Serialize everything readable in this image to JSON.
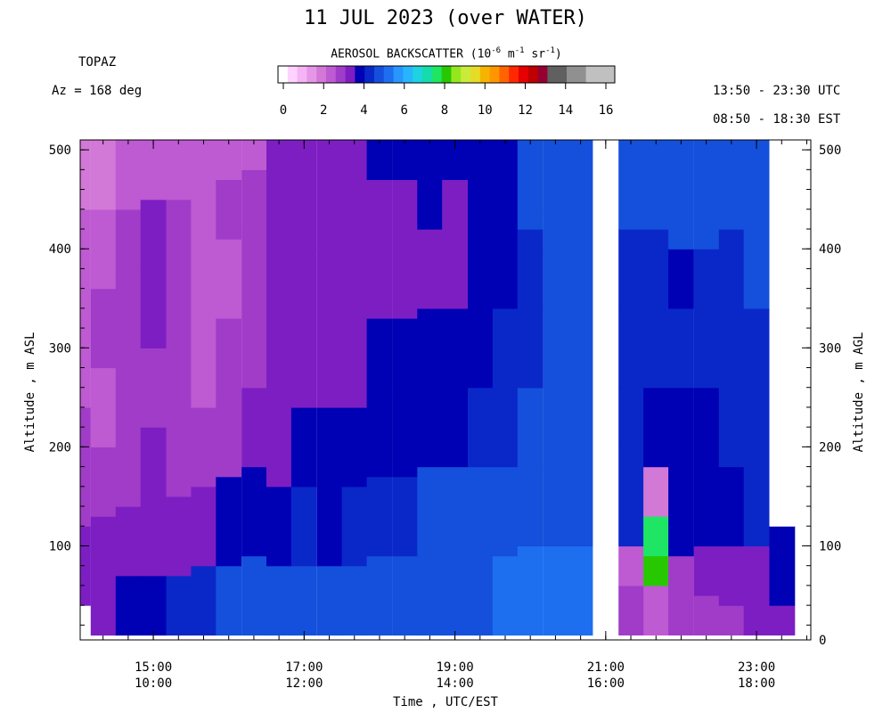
{
  "title": "11 JUL 2023 (over WATER)",
  "instrument": "TOPAZ",
  "azimuth": "Az = 168 deg",
  "time_range_utc": "13:50 - 23:30 UTC",
  "time_range_est": "08:50 - 18:30 EST",
  "colorbar": {
    "title_prefix": "AEROSOL BACKSCATTER (10",
    "exp1": "-6",
    "title_mid1": " m",
    "exp2": "-1",
    "title_mid2": " sr",
    "exp3": "-1",
    "title_suffix": ")",
    "tick_labels": [
      "0",
      "2",
      "4",
      "6",
      "8",
      "10",
      "12",
      "14",
      "16"
    ],
    "colors": [
      "#ffffff",
      "#ffd2ff",
      "#f5b4f5",
      "#e696e6",
      "#d278d7",
      "#be5ad2",
      "#a03cc8",
      "#7d1ec3",
      "#0000b4",
      "#0a28c8",
      "#1450dc",
      "#1e6ef0",
      "#2896ff",
      "#28b4ff",
      "#1ed2e1",
      "#14dcaa",
      "#1ee664",
      "#28c800",
      "#96e61e",
      "#c8eb3c",
      "#e6dc28",
      "#f5b400",
      "#ff9600",
      "#ff6400",
      "#ff2800",
      "#e60000",
      "#be0000",
      "#960030",
      "#606060",
      "#606060",
      "#909090",
      "#909090",
      "#c0c0c0",
      "#c0c0c0",
      "#c0c0c0"
    ]
  },
  "chart_data": {
    "type": "heatmap",
    "title": "11 JUL 2023 (over WATER)",
    "xlabel": "Time , UTC/EST",
    "ylabel_left": "Altitude , m ASL",
    "ylabel_right": "Altitude , m AGL",
    "x_ticks_utc": [
      "15:00",
      "17:00",
      "19:00",
      "21:00",
      "23:00"
    ],
    "x_ticks_est": [
      "10:00",
      "12:00",
      "14:00",
      "16:00",
      "18:00"
    ],
    "x_tick_hours_utc": [
      15,
      17,
      19,
      21,
      23
    ],
    "y_ticks_left": [
      "100",
      "200",
      "300",
      "400",
      "500"
    ],
    "y_tick_values_left": [
      100,
      200,
      300,
      400,
      500
    ],
    "y_ticks_right": [
      "0",
      "100",
      "200",
      "300",
      "400",
      "500"
    ],
    "y_tick_values_right": [
      0,
      100,
      200,
      300,
      400,
      500
    ],
    "x_range_utc_hours": [
      14.03,
      23.72
    ],
    "y_range_m": [
      5,
      510
    ],
    "z_units": "10^-6 m^-1 sr^-1",
    "z_range": [
      0,
      16
    ],
    "column_width_hours": 0.333,
    "column_start_hours_utc": [
      13.83,
      14.17,
      14.5,
      14.83,
      15.17,
      15.5,
      15.83,
      16.17,
      16.5,
      16.83,
      17.17,
      17.5,
      17.83,
      18.17,
      18.5,
      18.83,
      19.17,
      19.5,
      19.83,
      20.17,
      20.5,
      20.83,
      21.17,
      21.5,
      21.83,
      22.17,
      22.5,
      22.83,
      23.17
    ],
    "segments_note": "each column: [altitude_bottom_m, altitude_top_m, backscatter_value]",
    "columns": [
      [
        [
          10,
          40,
          null
        ],
        [
          40,
          120,
          3.5
        ],
        [
          120,
          180,
          3.0
        ],
        [
          180,
          240,
          2.8
        ],
        [
          240,
          300,
          2.6
        ],
        [
          300,
          360,
          2.6
        ],
        [
          360,
          440,
          2.6
        ],
        [
          440,
          510,
          2.0
        ]
      ],
      [
        [
          10,
          70,
          3.5
        ],
        [
          70,
          130,
          3.3
        ],
        [
          130,
          200,
          2.9
        ],
        [
          200,
          280,
          2.7
        ],
        [
          280,
          360,
          2.8
        ],
        [
          360,
          440,
          2.6
        ],
        [
          440,
          510,
          2.0
        ]
      ],
      [
        [
          10,
          70,
          4.0
        ],
        [
          70,
          140,
          3.4
        ],
        [
          140,
          210,
          3.1
        ],
        [
          210,
          290,
          3.0
        ],
        [
          290,
          370,
          3.0
        ],
        [
          370,
          440,
          2.8
        ],
        [
          440,
          510,
          2.6
        ]
      ],
      [
        [
          10,
          70,
          4.0
        ],
        [
          70,
          150,
          3.5
        ],
        [
          150,
          220,
          3.2
        ],
        [
          220,
          300,
          3.1
        ],
        [
          300,
          380,
          3.2
        ],
        [
          380,
          450,
          3.3
        ],
        [
          450,
          510,
          2.7
        ]
      ],
      [
        [
          10,
          70,
          4.2
        ],
        [
          70,
          150,
          3.6
        ],
        [
          150,
          230,
          3.1
        ],
        [
          230,
          310,
          2.8
        ],
        [
          310,
          390,
          2.8
        ],
        [
          390,
          450,
          2.8
        ],
        [
          450,
          510,
          2.7
        ]
      ],
      [
        [
          10,
          80,
          4.5
        ],
        [
          80,
          160,
          3.6
        ],
        [
          160,
          240,
          3.0
        ],
        [
          240,
          320,
          2.7
        ],
        [
          320,
          400,
          2.7
        ],
        [
          400,
          460,
          2.7
        ],
        [
          460,
          510,
          2.7
        ]
      ],
      [
        [
          10,
          80,
          4.8
        ],
        [
          80,
          170,
          3.8
        ],
        [
          170,
          250,
          3.1
        ],
        [
          250,
          330,
          2.8
        ],
        [
          330,
          410,
          2.7
        ],
        [
          410,
          470,
          2.8
        ],
        [
          470,
          510,
          2.7
        ]
      ],
      [
        [
          10,
          90,
          4.8
        ],
        [
          90,
          180,
          3.7
        ],
        [
          180,
          260,
          3.2
        ],
        [
          260,
          340,
          3.0
        ],
        [
          340,
          420,
          2.9
        ],
        [
          420,
          480,
          2.8
        ],
        [
          480,
          510,
          2.7
        ]
      ],
      [
        [
          10,
          80,
          5.0
        ],
        [
          80,
          160,
          4.0
        ],
        [
          160,
          240,
          3.6
        ],
        [
          240,
          320,
          3.4
        ],
        [
          320,
          400,
          3.5
        ],
        [
          400,
          460,
          3.5
        ],
        [
          460,
          510,
          3.5
        ]
      ],
      [
        [
          10,
          80,
          4.6
        ],
        [
          80,
          160,
          4.2
        ],
        [
          160,
          240,
          3.7
        ],
        [
          240,
          320,
          3.5
        ],
        [
          320,
          400,
          3.5
        ],
        [
          400,
          460,
          3.6
        ],
        [
          460,
          510,
          3.6
        ]
      ],
      [
        [
          10,
          80,
          4.6
        ],
        [
          80,
          160,
          4.0
        ],
        [
          160,
          240,
          3.8
        ],
        [
          240,
          320,
          3.5
        ],
        [
          320,
          400,
          3.6
        ],
        [
          400,
          460,
          3.6
        ],
        [
          460,
          510,
          3.6
        ]
      ],
      [
        [
          10,
          80,
          4.8
        ],
        [
          80,
          160,
          4.2
        ],
        [
          160,
          240,
          3.8
        ],
        [
          240,
          320,
          3.6
        ],
        [
          320,
          400,
          3.5
        ],
        [
          400,
          460,
          3.5
        ],
        [
          460,
          510,
          3.6
        ]
      ],
      [
        [
          10,
          90,
          4.8
        ],
        [
          90,
          170,
          4.3
        ],
        [
          170,
          250,
          3.8
        ],
        [
          250,
          330,
          3.7
        ],
        [
          330,
          410,
          3.6
        ],
        [
          410,
          470,
          3.6
        ],
        [
          470,
          510,
          3.7
        ]
      ],
      [
        [
          10,
          90,
          4.8
        ],
        [
          90,
          170,
          4.4
        ],
        [
          170,
          250,
          3.9
        ],
        [
          250,
          330,
          3.7
        ],
        [
          330,
          410,
          3.5
        ],
        [
          410,
          470,
          3.6
        ],
        [
          470,
          510,
          3.8
        ]
      ],
      [
        [
          10,
          100,
          4.9
        ],
        [
          100,
          180,
          4.6
        ],
        [
          180,
          260,
          4.0
        ],
        [
          260,
          340,
          3.8
        ],
        [
          340,
          420,
          3.6
        ],
        [
          420,
          480,
          3.7
        ],
        [
          480,
          510,
          3.8
        ]
      ],
      [
        [
          10,
          90,
          5.0
        ],
        [
          90,
          180,
          4.6
        ],
        [
          180,
          260,
          4.0
        ],
        [
          260,
          340,
          3.8
        ],
        [
          340,
          420,
          3.6
        ],
        [
          420,
          470,
          3.6
        ],
        [
          470,
          510,
          3.8
        ]
      ],
      [
        [
          10,
          90,
          5.0
        ],
        [
          90,
          180,
          4.7
        ],
        [
          180,
          260,
          4.2
        ],
        [
          260,
          340,
          3.9
        ],
        [
          340,
          420,
          3.7
        ],
        [
          420,
          470,
          3.8
        ],
        [
          470,
          510,
          3.8
        ]
      ],
      [
        [
          10,
          90,
          5.2
        ],
        [
          90,
          180,
          4.8
        ],
        [
          180,
          260,
          4.4
        ],
        [
          260,
          340,
          4.2
        ],
        [
          340,
          420,
          4.0
        ],
        [
          420,
          480,
          4.0
        ],
        [
          480,
          510,
          4.0
        ]
      ],
      [
        [
          10,
          100,
          5.2
        ],
        [
          100,
          180,
          4.9
        ],
        [
          180,
          260,
          4.6
        ],
        [
          260,
          340,
          4.4
        ],
        [
          340,
          420,
          4.2
        ],
        [
          420,
          480,
          4.6
        ],
        [
          480,
          510,
          4.6
        ]
      ],
      [
        [
          10,
          100,
          5.2
        ],
        [
          100,
          180,
          5.0
        ],
        [
          180,
          260,
          4.8
        ],
        [
          260,
          340,
          4.6
        ],
        [
          340,
          400,
          4.6
        ],
        [
          400,
          440,
          5.0
        ],
        [
          440,
          510,
          4.6
        ]
      ],
      [
        [
          10,
          100,
          5.2
        ],
        [
          100,
          180,
          5.0
        ],
        [
          180,
          260,
          4.8
        ],
        [
          260,
          340,
          4.6
        ],
        [
          340,
          420,
          4.6
        ],
        [
          420,
          480,
          4.6
        ],
        [
          480,
          510,
          4.6
        ]
      ],
      [
        [
          10,
          510,
          null
        ]
      ],
      [
        [
          10,
          60,
          3.0
        ],
        [
          60,
          100,
          2.5
        ],
        [
          100,
          200,
          4.2
        ],
        [
          200,
          260,
          4.3
        ],
        [
          260,
          340,
          4.4
        ],
        [
          340,
          420,
          4.4
        ],
        [
          420,
          510,
          4.6
        ]
      ],
      [
        [
          10,
          60,
          2.5
        ],
        [
          60,
          90,
          7.8
        ],
        [
          90,
          130,
          7.6
        ],
        [
          130,
          180,
          2.2
        ],
        [
          180,
          260,
          4.0
        ],
        [
          260,
          340,
          4.2
        ],
        [
          340,
          420,
          4.4
        ],
        [
          420,
          510,
          4.6
        ]
      ],
      [
        [
          10,
          50,
          3.0
        ],
        [
          50,
          90,
          3.1
        ],
        [
          90,
          170,
          3.8
        ],
        [
          170,
          260,
          4.0
        ],
        [
          260,
          340,
          4.2
        ],
        [
          340,
          400,
          4.0
        ],
        [
          400,
          510,
          4.6
        ]
      ],
      [
        [
          10,
          50,
          3.0
        ],
        [
          50,
          100,
          3.2
        ],
        [
          100,
          170,
          3.9
        ],
        [
          170,
          260,
          4.1
        ],
        [
          260,
          340,
          4.2
        ],
        [
          340,
          400,
          4.2
        ],
        [
          400,
          510,
          4.6
        ]
      ],
      [
        [
          10,
          40,
          3.1
        ],
        [
          40,
          100,
          3.5
        ],
        [
          100,
          180,
          4.0
        ],
        [
          180,
          260,
          4.2
        ],
        [
          260,
          330,
          4.2
        ],
        [
          330,
          420,
          4.4
        ],
        [
          420,
          510,
          4.6
        ]
      ],
      [
        [
          10,
          40,
          3.4
        ],
        [
          40,
          100,
          3.6
        ],
        [
          100,
          180,
          4.3
        ],
        [
          180,
          260,
          4.4
        ],
        [
          260,
          340,
          4.4
        ],
        [
          340,
          420,
          4.6
        ],
        [
          420,
          510,
          4.6
        ]
      ],
      [
        [
          10,
          40,
          3.6
        ],
        [
          40,
          120,
          3.8
        ],
        [
          120,
          510,
          null
        ]
      ]
    ]
  }
}
